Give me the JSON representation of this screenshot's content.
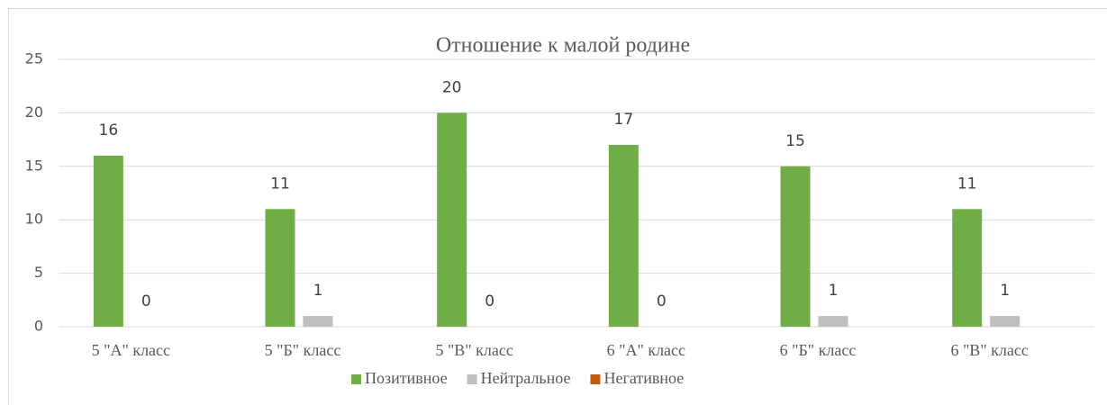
{
  "chart_data": {
    "type": "bar",
    "title": "Отношение к малой родине",
    "categories": [
      "5 \"А\" класс",
      "5 \"Б\" класс",
      "5 \"В\" класс",
      "6 \"А\" класс",
      "6 \"Б\" класс",
      "6 \"В\" класс"
    ],
    "series": [
      {
        "name": "Позитивное",
        "color": "#70ad47",
        "values": [
          16,
          11,
          20,
          17,
          15,
          11
        ],
        "labels": true
      },
      {
        "name": "Нейтральное",
        "color": "#bfbfbf",
        "values": [
          0,
          1,
          0,
          0,
          1,
          1
        ],
        "labels": true
      },
      {
        "name": "Негативное",
        "color": "#c55a11",
        "values": [
          0,
          0,
          0,
          0,
          0,
          0
        ],
        "labels": false
      }
    ],
    "ylim": [
      0,
      25
    ],
    "yticks": [
      0,
      5,
      10,
      15,
      20,
      25
    ],
    "grid": true,
    "legend": "bottom"
  }
}
